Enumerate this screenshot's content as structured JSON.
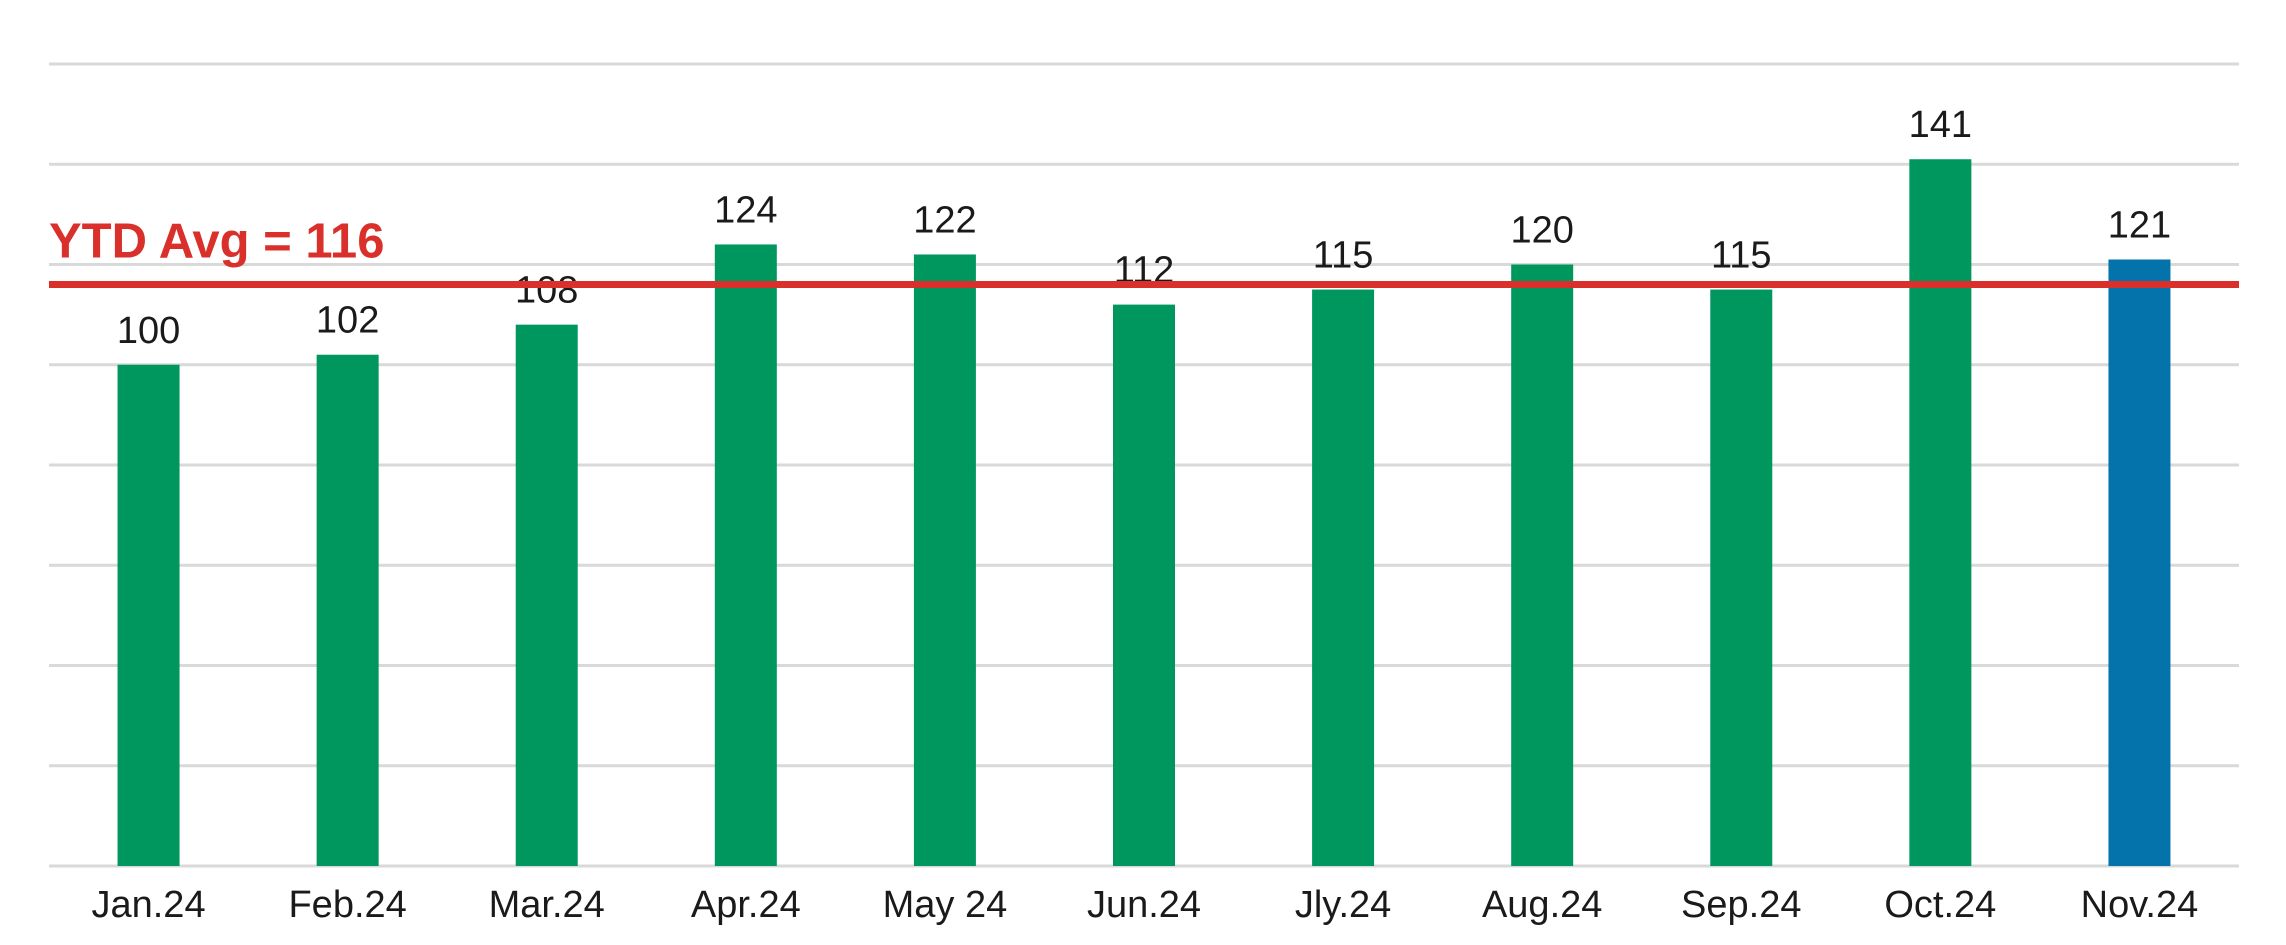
{
  "chart_data": {
    "type": "bar",
    "categories": [
      "Jan.24",
      "Feb.24",
      "Mar.24",
      "Apr.24",
      "May 24",
      "Jun.24",
      "Jly.24",
      "Aug.24",
      "Sep.24",
      "Oct.24",
      "Nov.24"
    ],
    "values": [
      100,
      102,
      108,
      124,
      122,
      112,
      115,
      120,
      115,
      141,
      121
    ],
    "ylim": [
      0,
      160
    ],
    "grid": true,
    "reference_line": {
      "value": 116,
      "label": "YTD Avg = 116",
      "color": "#d9302c"
    },
    "colors": {
      "default": "#00975f",
      "highlight": "#0573ab",
      "highlight_index": 10
    }
  }
}
